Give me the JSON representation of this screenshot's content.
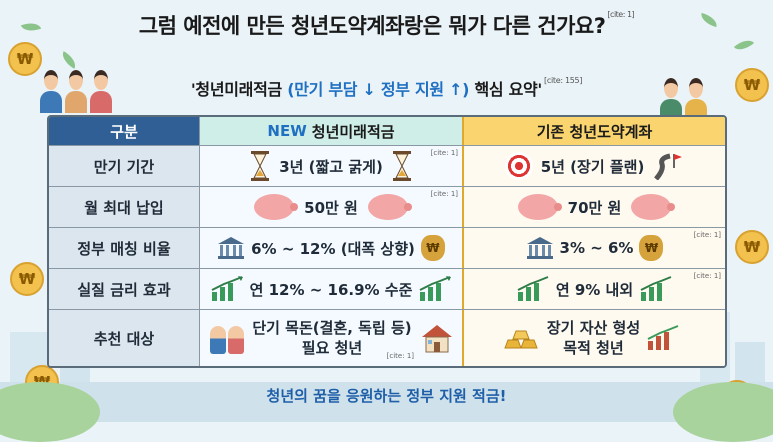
{
  "title": "그럼 예전에 만든 청년도약계좌랑은 뭐가 다른 건가요?",
  "title_cite": "[cite: 1]",
  "subtitle": {
    "prefix": "'청년미래적금",
    "highlight": "(만기 부담 ↓ 정부 지원 ↑)",
    "suffix": "핵심 요약'",
    "cite": "[cite: 155]"
  },
  "coin_symbol": "₩",
  "colors": {
    "header_left": "#2f5f95",
    "header_new": "#cfeee8",
    "header_old": "#f9d46f",
    "accent_blue": "#1f6fc2"
  },
  "table": {
    "header": {
      "col1": "구분",
      "col2_new": "NEW",
      "col2": "청년미래적금",
      "col3": "기존 청년도약계좌"
    },
    "rows": [
      {
        "label": "만기 기간",
        "new": "3년 (짧고 굵게)",
        "new_cite": "[cite: 1]",
        "old": "5년 (장기 플랜)",
        "icons_new": [
          "hourglass-icon",
          "hourglass-icon"
        ],
        "icons_old": [
          "target-icon",
          "road-flag-icon"
        ]
      },
      {
        "label": "월 최대 납입",
        "new": "50만 원",
        "new_cite": "[cite: 1]",
        "old": "70만 원",
        "icons_new": [
          "piggy-bank-icon",
          "piggy-bank-icon"
        ],
        "icons_old": [
          "piggy-bank-icon",
          "piggy-bank-icon"
        ]
      },
      {
        "label": "정부 매칭 비율",
        "new": "6% ~ 12% (대폭 상향)",
        "old": "3% ~ 6%",
        "old_cite": "[cite: 1]",
        "icons_new": [
          "bank-icon",
          "money-bag-icon"
        ],
        "icons_old": [
          "bank-icon",
          "money-bag-icon"
        ]
      },
      {
        "label": "실질 금리 효과",
        "new": "연 12% ~ 16.9% 수준",
        "old": "연 9% 내외",
        "old_cite": "[cite: 1]",
        "icons_new": [
          "growth-chart-icon",
          "growth-chart-icon"
        ],
        "icons_old": [
          "growth-chart-icon",
          "growth-chart-icon"
        ]
      },
      {
        "label": "추천 대상",
        "new_line1": "단기 목돈(결혼, 독립 등)",
        "new_line2": "필요 청년",
        "new_cite": "[cite: 1]",
        "old_line1": "장기 자산 형성",
        "old_line2": "목적 청년",
        "icons_new": [
          "couple-icon",
          "house-icon"
        ],
        "icons_old": [
          "gold-bars-icon",
          "growth-chart-icon"
        ]
      }
    ]
  },
  "footer": "청년의 꿈을 응원하는 정부 지원 적금!"
}
